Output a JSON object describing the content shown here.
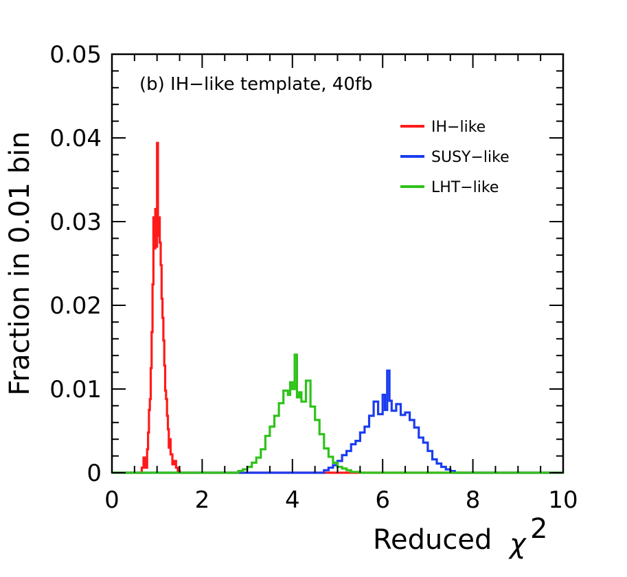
{
  "chart_data": {
    "type": "line",
    "title": "",
    "annotation": "(b) IH−like template, 40fb",
    "xlabel": "Reduced",
    "xlabel_symbol": "χ",
    "xlabel_superscript": "2",
    "ylabel": "Fraction in 0.01 bin",
    "xlim": [
      0,
      10
    ],
    "ylim": [
      0,
      0.05
    ],
    "x_ticks": [
      0,
      2,
      4,
      6,
      8,
      10
    ],
    "x_tick_labels": [
      "0",
      "2",
      "4",
      "6",
      "8",
      "10"
    ],
    "y_ticks": [
      0,
      0.01,
      0.02,
      0.03,
      0.04,
      0.05
    ],
    "y_tick_labels": [
      "0",
      "0.01",
      "0.02",
      "0.03",
      "0.04",
      "0.05"
    ],
    "grid": false,
    "legend_position": "top-right",
    "series": [
      {
        "name": "IH−like",
        "color": "#ff1a1a",
        "x": [
          0.0,
          0.6,
          0.66,
          0.7,
          0.74,
          0.78,
          0.8,
          0.82,
          0.84,
          0.86,
          0.88,
          0.9,
          0.92,
          0.94,
          0.96,
          0.98,
          1.0,
          1.02,
          1.04,
          1.06,
          1.08,
          1.1,
          1.12,
          1.14,
          1.16,
          1.18,
          1.2,
          1.22,
          1.24,
          1.26,
          1.28,
          1.3,
          1.34,
          1.38,
          1.42,
          1.46,
          1.5,
          10.0
        ],
        "y": [
          0,
          0,
          0.0006,
          0.0018,
          0.0006,
          0.0028,
          0.0048,
          0.0075,
          0.0088,
          0.0125,
          0.0168,
          0.0225,
          0.0305,
          0.0268,
          0.0315,
          0.027,
          0.0394,
          0.0283,
          0.0305,
          0.0275,
          0.0248,
          0.0208,
          0.0185,
          0.0158,
          0.0128,
          0.0098,
          0.0088,
          0.0068,
          0.0052,
          0.003,
          0.004,
          0.0022,
          0.001,
          0.0014,
          0.0006,
          0.0002,
          0,
          0
        ]
      },
      {
        "name": "SUSY−like",
        "color": "#1a3cf0",
        "x": [
          0.0,
          4.6,
          4.7,
          4.8,
          4.9,
          5.0,
          5.1,
          5.2,
          5.3,
          5.4,
          5.5,
          5.6,
          5.7,
          5.8,
          5.9,
          6.0,
          6.05,
          6.1,
          6.15,
          6.2,
          6.3,
          6.4,
          6.5,
          6.6,
          6.7,
          6.8,
          6.9,
          7.0,
          7.1,
          7.2,
          7.3,
          7.4,
          7.5,
          7.6,
          10.0
        ],
        "y": [
          0,
          0,
          0.0003,
          0.0006,
          0.0009,
          0.0014,
          0.0021,
          0.0026,
          0.0034,
          0.0038,
          0.0048,
          0.0055,
          0.0068,
          0.0085,
          0.007,
          0.0093,
          0.0075,
          0.0122,
          0.0086,
          0.0074,
          0.0082,
          0.0069,
          0.0072,
          0.0063,
          0.0054,
          0.0042,
          0.0036,
          0.0026,
          0.0016,
          0.0011,
          0.0007,
          0.0004,
          0.0002,
          0,
          0
        ]
      },
      {
        "name": "LHT−like",
        "color": "#2fc21a",
        "x": [
          0.0,
          2.7,
          2.8,
          2.9,
          3.0,
          3.1,
          3.2,
          3.3,
          3.4,
          3.5,
          3.6,
          3.7,
          3.8,
          3.9,
          3.95,
          4.0,
          4.05,
          4.1,
          4.15,
          4.2,
          4.3,
          4.4,
          4.5,
          4.6,
          4.7,
          4.8,
          4.9,
          5.0,
          5.1,
          5.2,
          5.3,
          5.4,
          5.5,
          10.0
        ],
        "y": [
          0,
          0,
          0.0002,
          0.0004,
          0.0007,
          0.0012,
          0.0018,
          0.0028,
          0.0044,
          0.0055,
          0.0068,
          0.0083,
          0.0098,
          0.0093,
          0.0108,
          0.01,
          0.0141,
          0.009,
          0.0096,
          0.0085,
          0.011,
          0.0079,
          0.0063,
          0.0046,
          0.0029,
          0.0019,
          0.0012,
          0.0007,
          0.0005,
          0.0003,
          0.0001,
          0.0001,
          0,
          0
        ]
      }
    ]
  }
}
